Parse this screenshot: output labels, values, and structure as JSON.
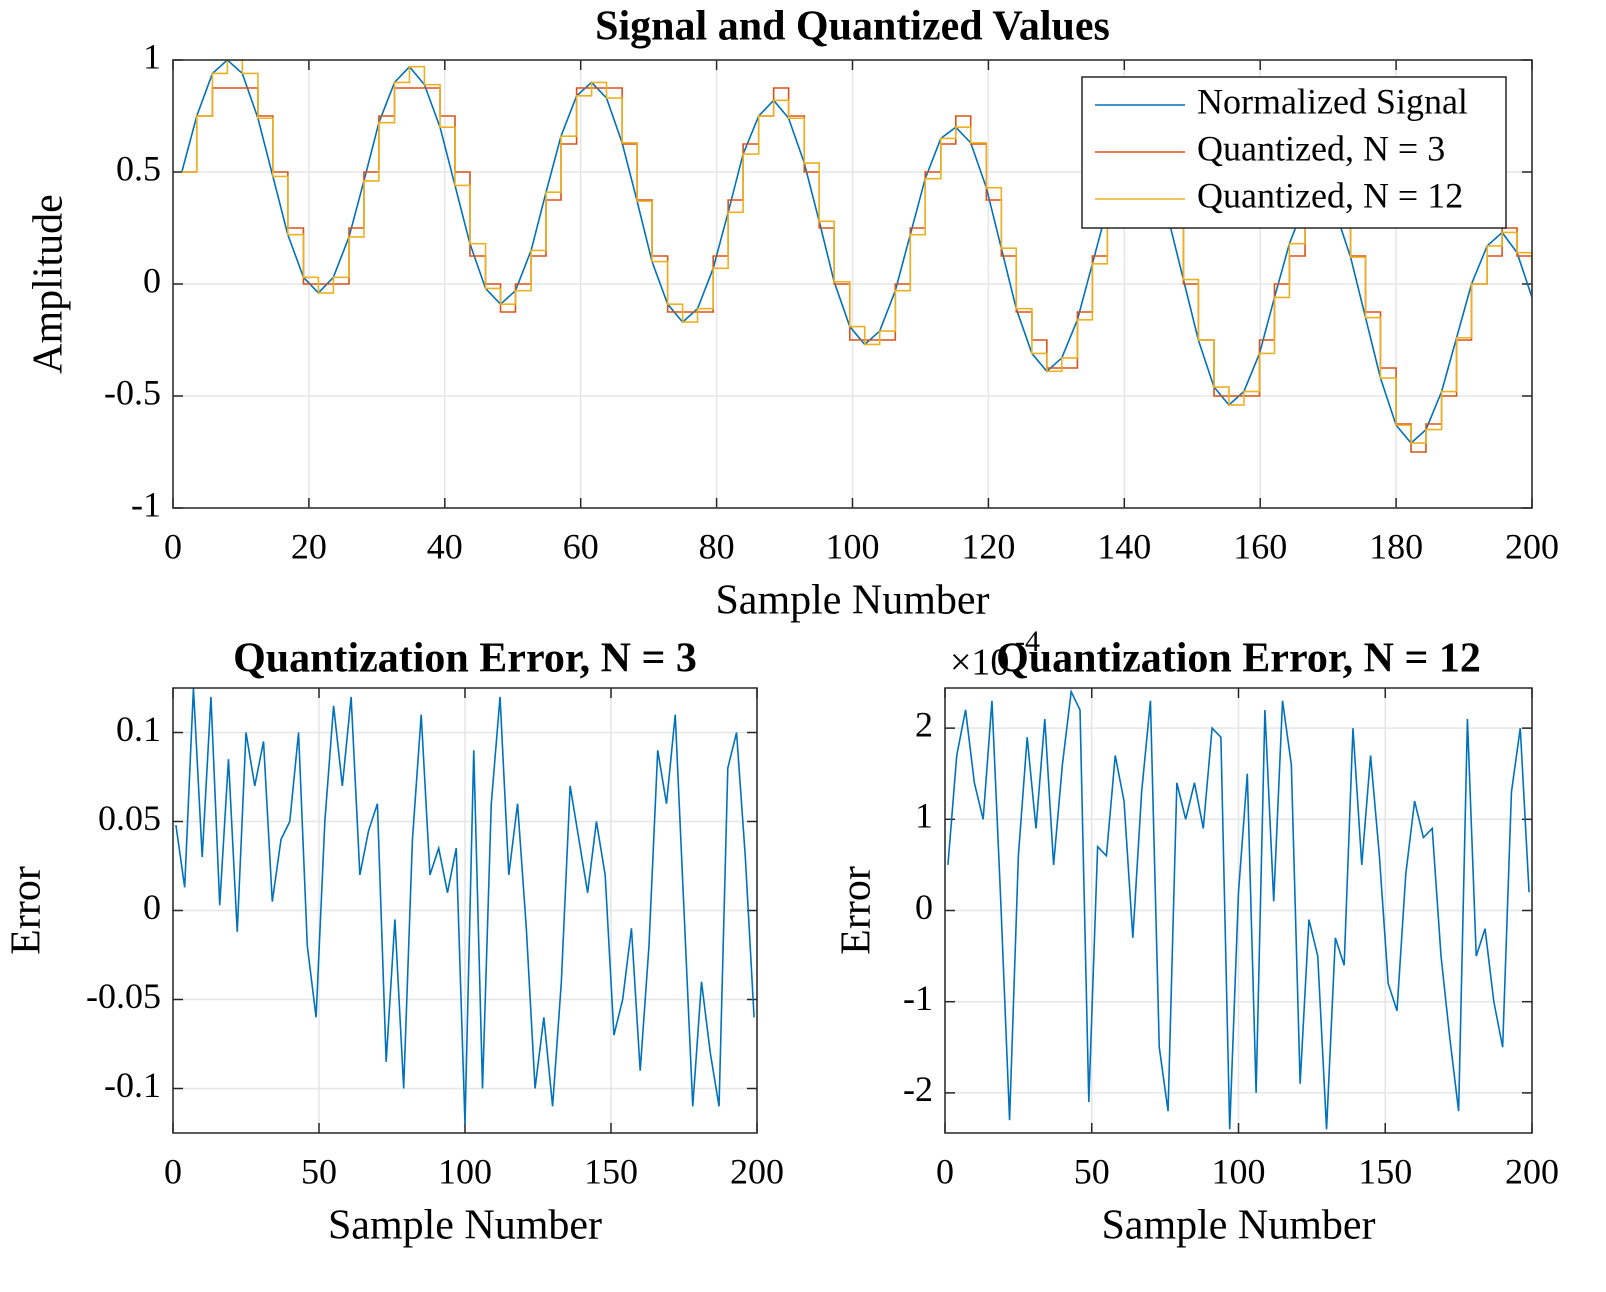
{
  "chart_data": [
    {
      "type": "line",
      "title": "Signal and Quantized Values",
      "xlabel": "Sample Number",
      "ylabel": "Amplitude",
      "x": [
        1.3,
        3.5,
        5.8,
        8,
        10.2,
        12.5,
        14.7,
        16.9,
        19.2,
        21.4,
        23.6,
        25.9,
        28.1,
        30.3,
        32.6,
        34.8,
        37,
        39.3,
        41.5,
        43.7,
        46,
        48.2,
        50.4,
        52.7,
        54.9,
        57.1,
        59.4,
        61.6,
        63.8,
        66.1,
        68.3,
        70.5,
        72.8,
        75,
        77.2,
        79.5,
        81.7,
        83.9,
        86.2,
        88.4,
        90.6,
        92.9,
        95.1,
        97.3,
        99.6,
        101.8,
        104,
        106.3,
        108.5,
        110.7,
        113,
        115.2,
        117.4,
        119.7,
        121.9,
        124.1,
        126.4,
        128.6,
        130.8,
        133.1,
        135.3,
        137.5,
        139.8,
        142,
        144.2,
        146.5,
        148.7,
        150.9,
        153.2,
        155.4,
        157.6,
        159.9,
        162.1,
        164.3,
        166.6,
        168.8,
        171,
        173.3,
        175.5,
        177.7,
        180,
        182.2,
        184.4,
        186.7,
        188.9,
        191.1,
        193.4,
        195.6,
        197.8,
        200
      ],
      "series": [
        {
          "name": "Normalized Signal",
          "color": "#0072bd",
          "step": false,
          "values": [
            0.5,
            0.75,
            0.94,
            1,
            0.94,
            0.74,
            0.48,
            0.22,
            0.03,
            -0.04,
            0.03,
            0.21,
            0.46,
            0.72,
            0.9,
            0.97,
            0.89,
            0.7,
            0.44,
            0.18,
            -0.02,
            -0.09,
            -0.03,
            0.15,
            0.41,
            0.66,
            0.84,
            0.9,
            0.83,
            0.63,
            0.37,
            0.1,
            -0.09,
            -0.17,
            -0.11,
            0.07,
            0.32,
            0.58,
            0.75,
            0.82,
            0.74,
            0.54,
            0.28,
            0.01,
            -0.19,
            -0.27,
            -0.21,
            -0.03,
            0.22,
            0.47,
            0.65,
            0.7,
            0.63,
            0.43,
            0.16,
            -0.11,
            -0.31,
            -0.39,
            -0.33,
            -0.16,
            0.09,
            0.34,
            0.51,
            0.57,
            0.49,
            0.29,
            0.02,
            -0.25,
            -0.46,
            -0.54,
            -0.48,
            -0.31,
            -0.06,
            0.18,
            0.36,
            0.41,
            0.33,
            0.12,
            -0.15,
            -0.42,
            -0.63,
            -0.71,
            -0.65,
            -0.48,
            -0.24,
            0,
            0.17,
            0.23,
            0.14,
            -0.06
          ]
        },
        {
          "name": "Quantized, N = 3",
          "color": "#d95319",
          "step": true,
          "values": [
            0.5,
            0.75,
            0.875,
            0.875,
            0.875,
            0.75,
            0.5,
            0.25,
            0,
            0,
            0,
            0.25,
            0.5,
            0.75,
            0.875,
            0.875,
            0.875,
            0.75,
            0.5,
            0.125,
            0,
            -0.125,
            0,
            0.125,
            0.375,
            0.625,
            0.875,
            0.875,
            0.875,
            0.625,
            0.375,
            0.125,
            -0.125,
            -0.125,
            -0.125,
            0.125,
            0.375,
            0.625,
            0.75,
            0.875,
            0.75,
            0.5,
            0.25,
            0,
            -0.25,
            -0.25,
            -0.25,
            0,
            0.25,
            0.5,
            0.625,
            0.75,
            0.625,
            0.375,
            0.125,
            -0.125,
            -0.25,
            -0.375,
            -0.375,
            -0.125,
            0.125,
            0.375,
            0.5,
            0.625,
            0.5,
            0.25,
            0,
            -0.25,
            -0.5,
            -0.5,
            -0.5,
            -0.25,
            0,
            0.125,
            0.375,
            0.375,
            0.375,
            0.125,
            -0.125,
            -0.375,
            -0.625,
            -0.75,
            -0.625,
            -0.5,
            -0.25,
            0,
            0.125,
            0.25,
            0.125,
            0
          ]
        },
        {
          "name": "Quantized, N = 12",
          "color": "#edb120",
          "step": true,
          "values": [
            0.5,
            0.75,
            0.94,
            1,
            0.94,
            0.74,
            0.48,
            0.22,
            0.03,
            -0.04,
            0.03,
            0.21,
            0.46,
            0.72,
            0.9,
            0.97,
            0.89,
            0.7,
            0.44,
            0.18,
            -0.02,
            -0.09,
            -0.03,
            0.15,
            0.41,
            0.66,
            0.84,
            0.9,
            0.83,
            0.63,
            0.37,
            0.1,
            -0.09,
            -0.17,
            -0.11,
            0.07,
            0.32,
            0.58,
            0.75,
            0.82,
            0.74,
            0.54,
            0.28,
            0.01,
            -0.19,
            -0.27,
            -0.21,
            -0.03,
            0.22,
            0.47,
            0.65,
            0.7,
            0.63,
            0.43,
            0.16,
            -0.11,
            -0.31,
            -0.39,
            -0.33,
            -0.16,
            0.09,
            0.34,
            0.51,
            0.57,
            0.49,
            0.29,
            0.02,
            -0.25,
            -0.46,
            -0.54,
            -0.48,
            -0.31,
            -0.06,
            0.18,
            0.36,
            0.41,
            0.33,
            0.12,
            -0.15,
            -0.42,
            -0.63,
            -0.71,
            -0.65,
            -0.48,
            -0.24,
            0,
            0.17,
            0.23,
            0.14,
            -0.06
          ]
        }
      ],
      "xlim": [
        0,
        200
      ],
      "ylim": [
        -1,
        1
      ],
      "xticks": [
        0,
        20,
        40,
        60,
        80,
        100,
        120,
        140,
        160,
        180,
        200
      ],
      "yticks": [
        -1,
        -0.5,
        0,
        0.5,
        1
      ],
      "grid": true,
      "legend": "upper right"
    },
    {
      "type": "line",
      "title": "Quantization Error, N = 3",
      "xlabel": "Sample Number",
      "ylabel": "Error",
      "x": [
        1,
        4,
        7,
        10,
        13,
        16,
        19,
        22,
        25,
        28,
        31,
        34,
        37,
        40,
        43,
        46,
        49,
        52,
        55,
        58,
        61,
        64,
        67,
        70,
        73,
        76,
        79,
        82,
        85,
        88,
        91,
        94,
        97,
        100,
        103,
        106,
        109,
        112,
        115,
        118,
        121,
        124,
        127,
        130,
        133,
        136,
        139,
        142,
        145,
        148,
        151,
        154,
        157,
        160,
        163,
        166,
        169,
        172,
        175,
        178,
        181,
        184,
        187,
        190,
        193,
        196,
        199
      ],
      "values": [
        0.048,
        0.013,
        0.125,
        0.03,
        0.12,
        0.003,
        0.085,
        -0.012,
        0.1,
        0.07,
        0.095,
        0.005,
        0.04,
        0.05,
        0.1,
        -0.02,
        -0.06,
        0.05,
        0.115,
        0.07,
        0.12,
        0.02,
        0.045,
        0.06,
        -0.085,
        -0.005,
        -0.1,
        0.04,
        0.11,
        0.02,
        0.035,
        0.01,
        0.035,
        -0.12,
        0.09,
        -0.1,
        0.06,
        0.12,
        0.02,
        0.06,
        -0.01,
        -0.1,
        -0.06,
        -0.11,
        -0.04,
        0.07,
        0.04,
        0.01,
        0.05,
        0.02,
        -0.07,
        -0.05,
        -0.01,
        -0.09,
        -0.02,
        0.09,
        0.06,
        0.11,
        0,
        -0.11,
        -0.04,
        -0.08,
        -0.11,
        0.08,
        0.1,
        0.03,
        -0.06
      ],
      "color": "#0072bd",
      "xlim": [
        0,
        200
      ],
      "ylim": [
        -0.125,
        0.125
      ],
      "xticks": [
        0,
        50,
        100,
        150,
        200
      ],
      "yticks": [
        -0.1,
        -0.05,
        0,
        0.05,
        0.1
      ],
      "grid": true
    },
    {
      "type": "line",
      "title": "Quantization Error, N = 12",
      "xlabel": "Sample Number",
      "ylabel": "Error",
      "y_multiplier": {
        "base": "×10",
        "exponent": "-4"
      },
      "x": [
        1,
        4,
        7,
        10,
        13,
        16,
        19,
        22,
        25,
        28,
        31,
        34,
        37,
        40,
        43,
        46,
        49,
        52,
        55,
        58,
        61,
        64,
        67,
        70,
        73,
        76,
        79,
        82,
        85,
        88,
        91,
        94,
        97,
        100,
        103,
        106,
        109,
        112,
        115,
        118,
        121,
        124,
        127,
        130,
        133,
        136,
        139,
        142,
        145,
        148,
        151,
        154,
        157,
        160,
        163,
        166,
        169,
        172,
        175,
        178,
        181,
        184,
        187,
        190,
        193,
        196,
        199
      ],
      "values": [
        0.5,
        1.7,
        2.2,
        1.4,
        1,
        2.3,
        0.1,
        -2.3,
        0.6,
        1.9,
        0.9,
        2.1,
        0.5,
        1.6,
        2.4,
        2.2,
        -2.1,
        0.7,
        0.6,
        1.7,
        1.2,
        -0.3,
        1.3,
        2.3,
        -1.5,
        -2.2,
        1.4,
        1,
        1.4,
        0.9,
        2,
        1.9,
        -2.4,
        0.2,
        1.5,
        -2,
        2.2,
        0.1,
        2.3,
        1.6,
        -1.9,
        -0.1,
        -0.5,
        -2.4,
        -0.3,
        -0.6,
        2,
        0.5,
        1.7,
        0.6,
        -0.8,
        -1.1,
        0.4,
        1.2,
        0.8,
        0.9,
        -0.5,
        -1.4,
        -2.2,
        2.1,
        -0.5,
        -0.2,
        -1,
        -1.5,
        1.3,
        2,
        0.2
      ],
      "color": "#0072bd",
      "xlim": [
        0,
        200
      ],
      "ylim": [
        -2.44,
        2.44
      ],
      "xticks": [
        0,
        50,
        100,
        150,
        200
      ],
      "yticks": [
        -2,
        -1,
        0,
        1,
        2
      ],
      "grid": true
    }
  ]
}
